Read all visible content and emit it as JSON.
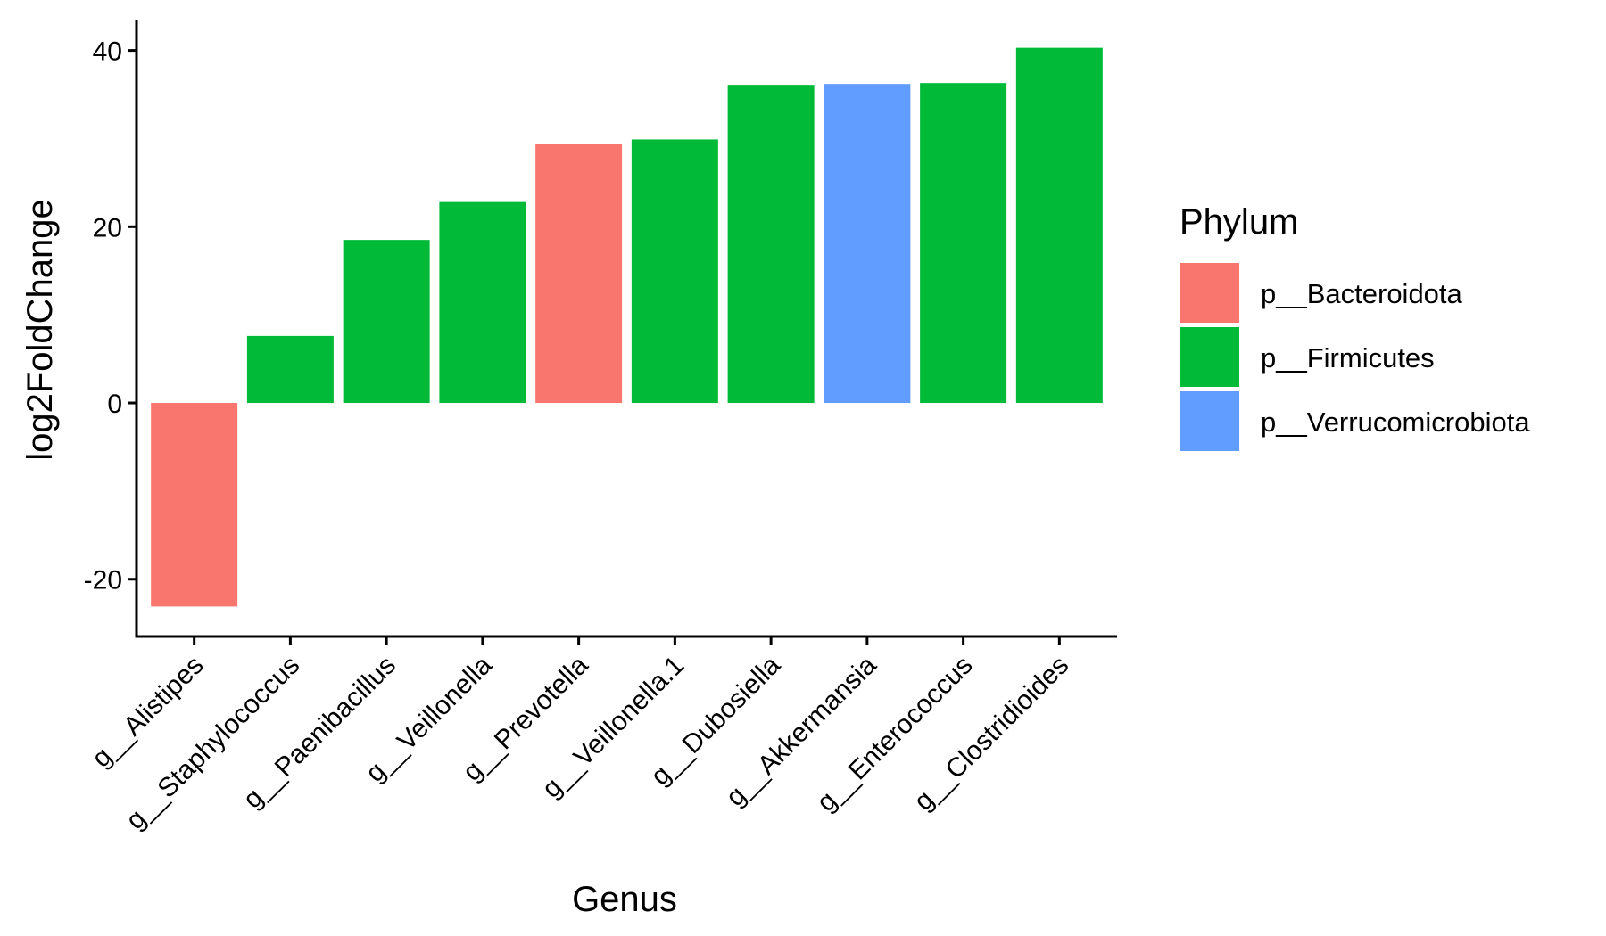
{
  "chart_data": {
    "type": "bar",
    "xlabel": "Genus",
    "ylabel": "log2FoldChange",
    "ylim": [
      -26.5,
      43.5
    ],
    "yticks": [
      -20,
      0,
      20,
      40
    ],
    "ytick_labels": [
      "-20",
      "0",
      "20",
      "40"
    ],
    "grid": false,
    "categories": [
      "g__Alistipes",
      "g__Staphylococcus",
      "g__Paenibacillus",
      "g__Veillonella",
      "g__Prevotella",
      "g__Veillonella.1",
      "g__Dubosiella",
      "g__Akkermansia",
      "g__Enterococcus",
      "g__Clostridioides"
    ],
    "values": [
      -23.1,
      7.6,
      18.5,
      22.8,
      29.4,
      29.9,
      36.1,
      36.2,
      36.3,
      40.3
    ],
    "phylum": [
      "p__Bacteroidota",
      "p__Firmicutes",
      "p__Firmicutes",
      "p__Firmicutes",
      "p__Bacteroidota",
      "p__Firmicutes",
      "p__Firmicutes",
      "p__Verrucomicrobiota",
      "p__Firmicutes",
      "p__Firmicutes"
    ],
    "legend": {
      "title": "Phylum",
      "position": "right",
      "entries": [
        {
          "label": "p__Bacteroidota",
          "color": "#F8766D"
        },
        {
          "label": "p__Firmicutes",
          "color": "#00BA38"
        },
        {
          "label": "p__Verrucomicrobiota",
          "color": "#619CFF"
        }
      ]
    }
  }
}
